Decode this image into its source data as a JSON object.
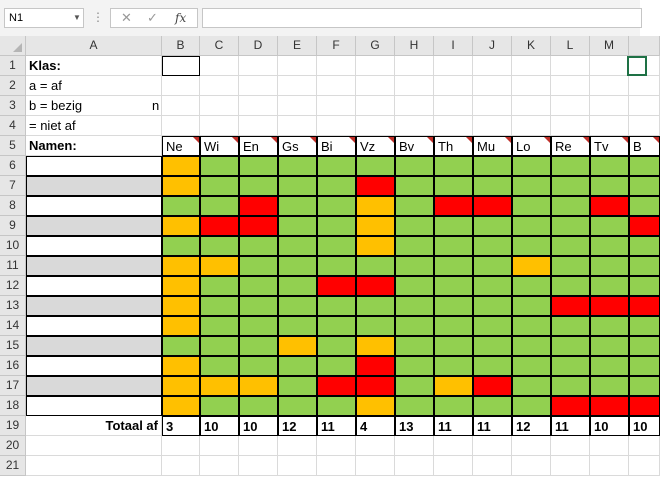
{
  "namebox": {
    "value": "N1"
  },
  "columns": [
    "A",
    "B",
    "C",
    "D",
    "E",
    "F",
    "G",
    "H",
    "I",
    "J",
    "K",
    "L",
    "M",
    ""
  ],
  "rows": [
    "1",
    "2",
    "3",
    "4",
    "5",
    "6",
    "7",
    "8",
    "9",
    "10",
    "11",
    "12",
    "13",
    "14",
    "15",
    "16",
    "17",
    "18",
    "19",
    "20",
    "21"
  ],
  "legend": {
    "klas_label": "Klas:",
    "af": "a = af",
    "bezig": "b = bezig",
    "bezig_suffix": "n",
    "niet_af": "= niet af",
    "namen_label": "Namen:"
  },
  "subjects": [
    "Ne",
    "Wi",
    "En",
    "Gs",
    "Bi",
    "Vz",
    "Bv",
    "Th",
    "Mu",
    "Lo",
    "Re",
    "Tv",
    "B"
  ],
  "status_colors": {
    "af": "#92d050",
    "bezig": "#ffc000",
    "niet_af": "#ff0000"
  },
  "status_grid": [
    [
      "b",
      "a",
      "a",
      "a",
      "a",
      "a",
      "a",
      "a",
      "a",
      "a",
      "a",
      "a",
      "a"
    ],
    [
      "b",
      "a",
      "a",
      "a",
      "a",
      "n",
      "a",
      "a",
      "a",
      "a",
      "a",
      "a",
      "a"
    ],
    [
      "a",
      "a",
      "n",
      "a",
      "a",
      "b",
      "a",
      "n",
      "n",
      "a",
      "a",
      "n",
      "a"
    ],
    [
      "b",
      "n",
      "n",
      "a",
      "a",
      "b",
      "a",
      "a",
      "a",
      "a",
      "a",
      "a",
      "n"
    ],
    [
      "a",
      "a",
      "a",
      "a",
      "a",
      "b",
      "a",
      "a",
      "a",
      "a",
      "a",
      "a",
      "a"
    ],
    [
      "b",
      "b",
      "a",
      "a",
      "a",
      "a",
      "a",
      "a",
      "a",
      "b",
      "a",
      "a",
      "a"
    ],
    [
      "b",
      "a",
      "a",
      "a",
      "n",
      "n",
      "a",
      "a",
      "a",
      "a",
      "a",
      "a",
      "a"
    ],
    [
      "b",
      "a",
      "a",
      "a",
      "a",
      "a",
      "a",
      "a",
      "a",
      "a",
      "n",
      "n",
      "n"
    ],
    [
      "b",
      "a",
      "a",
      "a",
      "a",
      "a",
      "a",
      "a",
      "a",
      "a",
      "a",
      "a",
      "a"
    ],
    [
      "a",
      "a",
      "a",
      "b",
      "a",
      "b",
      "a",
      "a",
      "a",
      "a",
      "a",
      "a",
      "a"
    ],
    [
      "b",
      "a",
      "a",
      "a",
      "a",
      "n",
      "a",
      "a",
      "a",
      "a",
      "a",
      "a",
      "a"
    ],
    [
      "b",
      "b",
      "b",
      "a",
      "n",
      "n",
      "a",
      "b",
      "n",
      "a",
      "a",
      "a",
      "a"
    ],
    [
      "b",
      "a",
      "a",
      "a",
      "a",
      "b",
      "a",
      "a",
      "a",
      "a",
      "n",
      "n",
      "n"
    ]
  ],
  "totals_label": "Totaal af",
  "totals": [
    "3",
    "10",
    "10",
    "12",
    "11",
    "4",
    "13",
    "11",
    "11",
    "12",
    "11",
    "10",
    "10"
  ]
}
